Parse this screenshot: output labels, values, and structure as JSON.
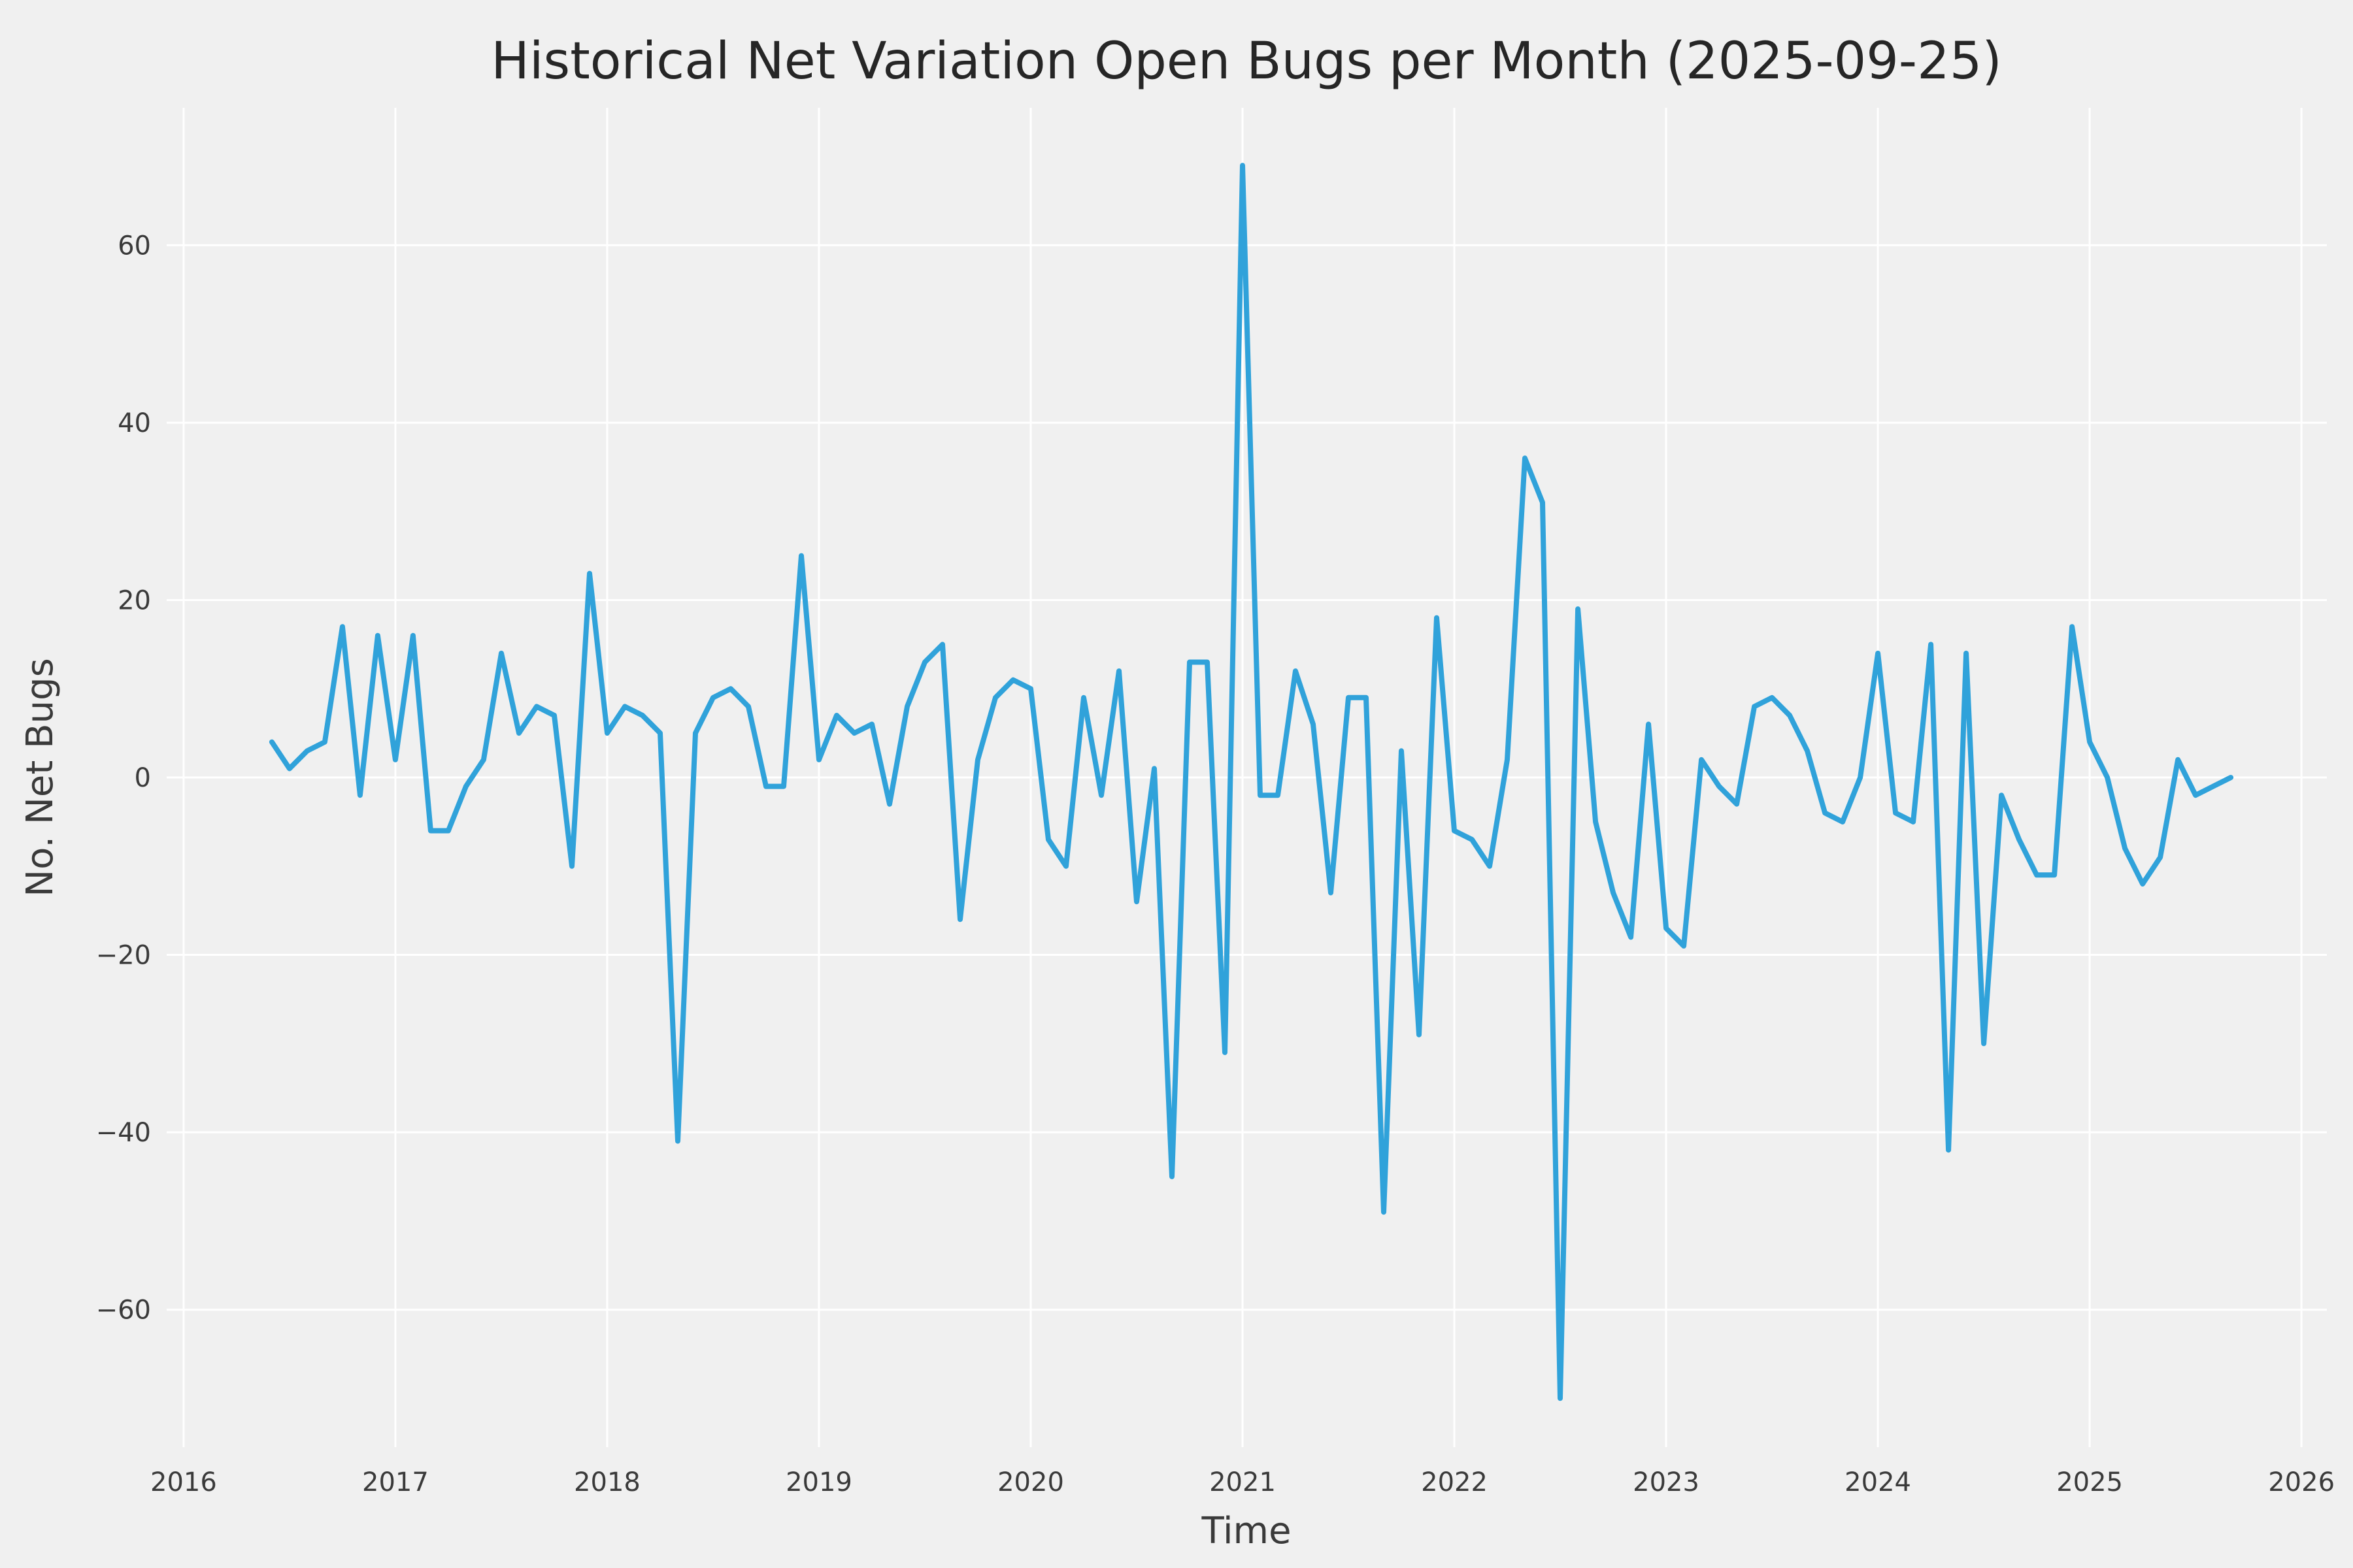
{
  "chart_data": {
    "type": "line",
    "title": "Historical Net Variation Open Bugs per Month (2025-09-25)",
    "xlabel": "Time",
    "ylabel": "No. Net Bugs",
    "start": "2016-06",
    "end": "2025-09",
    "frequency": "monthly",
    "values": [
      4,
      1,
      3,
      4,
      17,
      -2,
      16,
      2,
      16,
      -6,
      -6,
      -1,
      2,
      14,
      5,
      8,
      7,
      -10,
      23,
      5,
      8,
      7,
      5,
      -41,
      5,
      9,
      10,
      8,
      -1,
      -1,
      25,
      2,
      7,
      5,
      6,
      -3,
      8,
      13,
      15,
      -16,
      2,
      9,
      11,
      10,
      -7,
      -10,
      9,
      -2,
      12,
      -14,
      1,
      -45,
      13,
      13,
      -31,
      69,
      -2,
      -2,
      12,
      6,
      -13,
      9,
      9,
      -49,
      3,
      -29,
      18,
      -6,
      -7,
      -10,
      2,
      36,
      31,
      -70,
      19,
      -5,
      -13,
      -18,
      6,
      -17,
      -19,
      2,
      -1,
      -3,
      8,
      9,
      7,
      3,
      -4,
      -5,
      0,
      14,
      -4,
      -5,
      15,
      -42,
      14,
      -30,
      -2,
      -7,
      -11,
      -11,
      17,
      4,
      0,
      -8,
      -12,
      -9,
      2,
      -2,
      -1,
      0
    ],
    "xlim": [
      2015.92,
      2026.12
    ],
    "ylim": [
      -75.5,
      75.5
    ],
    "xticks": [
      2016,
      2017,
      2018,
      2019,
      2020,
      2021,
      2022,
      2023,
      2024,
      2025,
      2026
    ],
    "yticks": [
      -60,
      -40,
      -20,
      0,
      20,
      40,
      60
    ],
    "grid": true,
    "legend": false,
    "line_color": "#30a2da",
    "grid_color": "#ffffff",
    "background_color": "#f0f0f0",
    "text_color": "#3a3a3a"
  }
}
